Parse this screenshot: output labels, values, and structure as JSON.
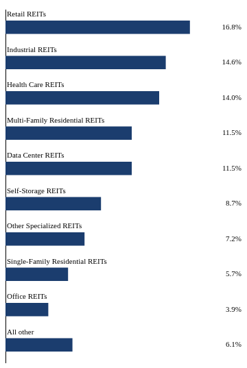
{
  "chart_data": {
    "type": "bar",
    "orientation": "horizontal",
    "categories": [
      "All other",
      "Office REITs",
      "Single-Family Residential REITs",
      "Other Specialized REITs",
      "Self-Storage REITs",
      "Data Center REITs",
      "Multi-Family Residential REITs",
      "Health Care REITs",
      "Industrial REITs",
      "Retail REITs"
    ],
    "values": [
      6.1,
      3.9,
      5.7,
      7.2,
      8.7,
      11.5,
      11.5,
      14.0,
      14.6,
      16.8
    ],
    "value_labels": [
      "6.1%",
      "3.9%",
      "5.7%",
      "7.2%",
      "8.7%",
      "11.5%",
      "11.5%",
      "14.0%",
      "14.6%",
      "16.8%"
    ],
    "color": "#1b3d6e",
    "xlim": [
      0,
      21.5
    ],
    "data_labels": true,
    "tick_labels": false,
    "grid": false
  }
}
